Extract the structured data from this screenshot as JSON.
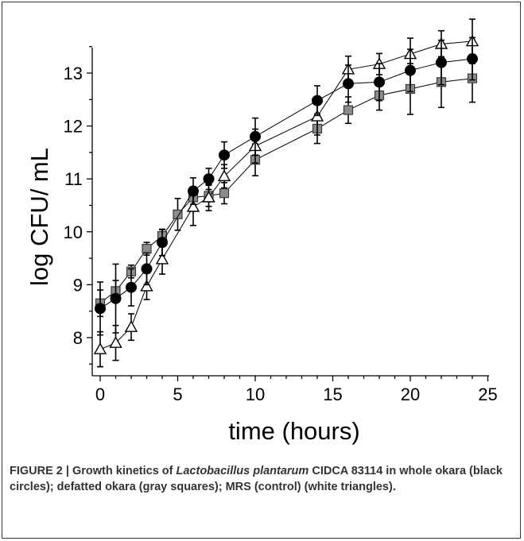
{
  "figure": {
    "caption_label": "FIGURE 2 | ",
    "caption_part1": "Growth kinetics of ",
    "caption_species": "Lactobacillus plantarum",
    "caption_part2": " CIDCA 83114 in whole okara (black circles); defatted okara (gray squares); MRS (control) (white triangles)."
  },
  "chart_data": {
    "type": "line",
    "xlabel": "time (hours)",
    "ylabel": "log CFU/ mL",
    "xlim": [
      0,
      25
    ],
    "ylim": [
      7.3,
      13.7
    ],
    "x_ticks": [
      0,
      5,
      10,
      15,
      20,
      25
    ],
    "y_ticks": [
      8,
      9,
      10,
      11,
      12,
      13
    ],
    "grid": false,
    "series": [
      {
        "marker": "circle",
        "color": "#000000",
        "x": [
          0,
          1,
          2,
          3,
          4,
          6,
          7,
          8,
          10,
          14,
          16,
          18,
          20,
          22,
          24
        ],
        "y": [
          8.55,
          8.74,
          8.95,
          9.3,
          9.8,
          10.77,
          11.0,
          11.45,
          11.8,
          12.48,
          12.8,
          12.83,
          13.05,
          13.2,
          13.27
        ],
        "err": [
          0.5,
          0.65,
          0.35,
          0.3,
          0.25,
          0.25,
          0.2,
          0.25,
          0.35,
          0.28,
          0.35,
          0.35,
          0.4,
          0.42,
          0.4
        ]
      },
      {
        "marker": "square",
        "color": "#8c8c8c",
        "x": [
          0,
          1,
          2,
          3,
          4,
          5,
          6,
          7,
          8,
          10,
          14,
          16,
          18,
          20,
          22,
          24
        ],
        "y": [
          8.65,
          8.88,
          9.25,
          9.68,
          9.92,
          10.33,
          10.65,
          10.68,
          10.73,
          11.36,
          11.95,
          12.3,
          12.58,
          12.7,
          12.83,
          12.9
        ],
        "err": [
          0.25,
          0.2,
          0.12,
          0.12,
          0.12,
          0.3,
          0.2,
          0.2,
          0.2,
          0.3,
          0.28,
          0.25,
          0.28,
          0.48,
          0.48,
          0.45
        ]
      },
      {
        "marker": "triangle",
        "color": "#ffffff",
        "x": [
          0,
          1,
          2,
          3,
          4,
          6,
          7,
          8,
          10,
          14,
          16,
          18,
          20,
          22,
          24
        ],
        "y": [
          7.78,
          7.9,
          8.2,
          8.97,
          9.48,
          10.47,
          10.65,
          11.05,
          11.62,
          12.18,
          13.07,
          13.17,
          13.36,
          13.55,
          13.6
        ],
        "err": [
          0.33,
          0.33,
          0.25,
          0.25,
          0.28,
          0.35,
          0.25,
          0.22,
          0.32,
          0.35,
          0.25,
          0.2,
          0.3,
          0.25,
          0.42
        ]
      }
    ]
  }
}
